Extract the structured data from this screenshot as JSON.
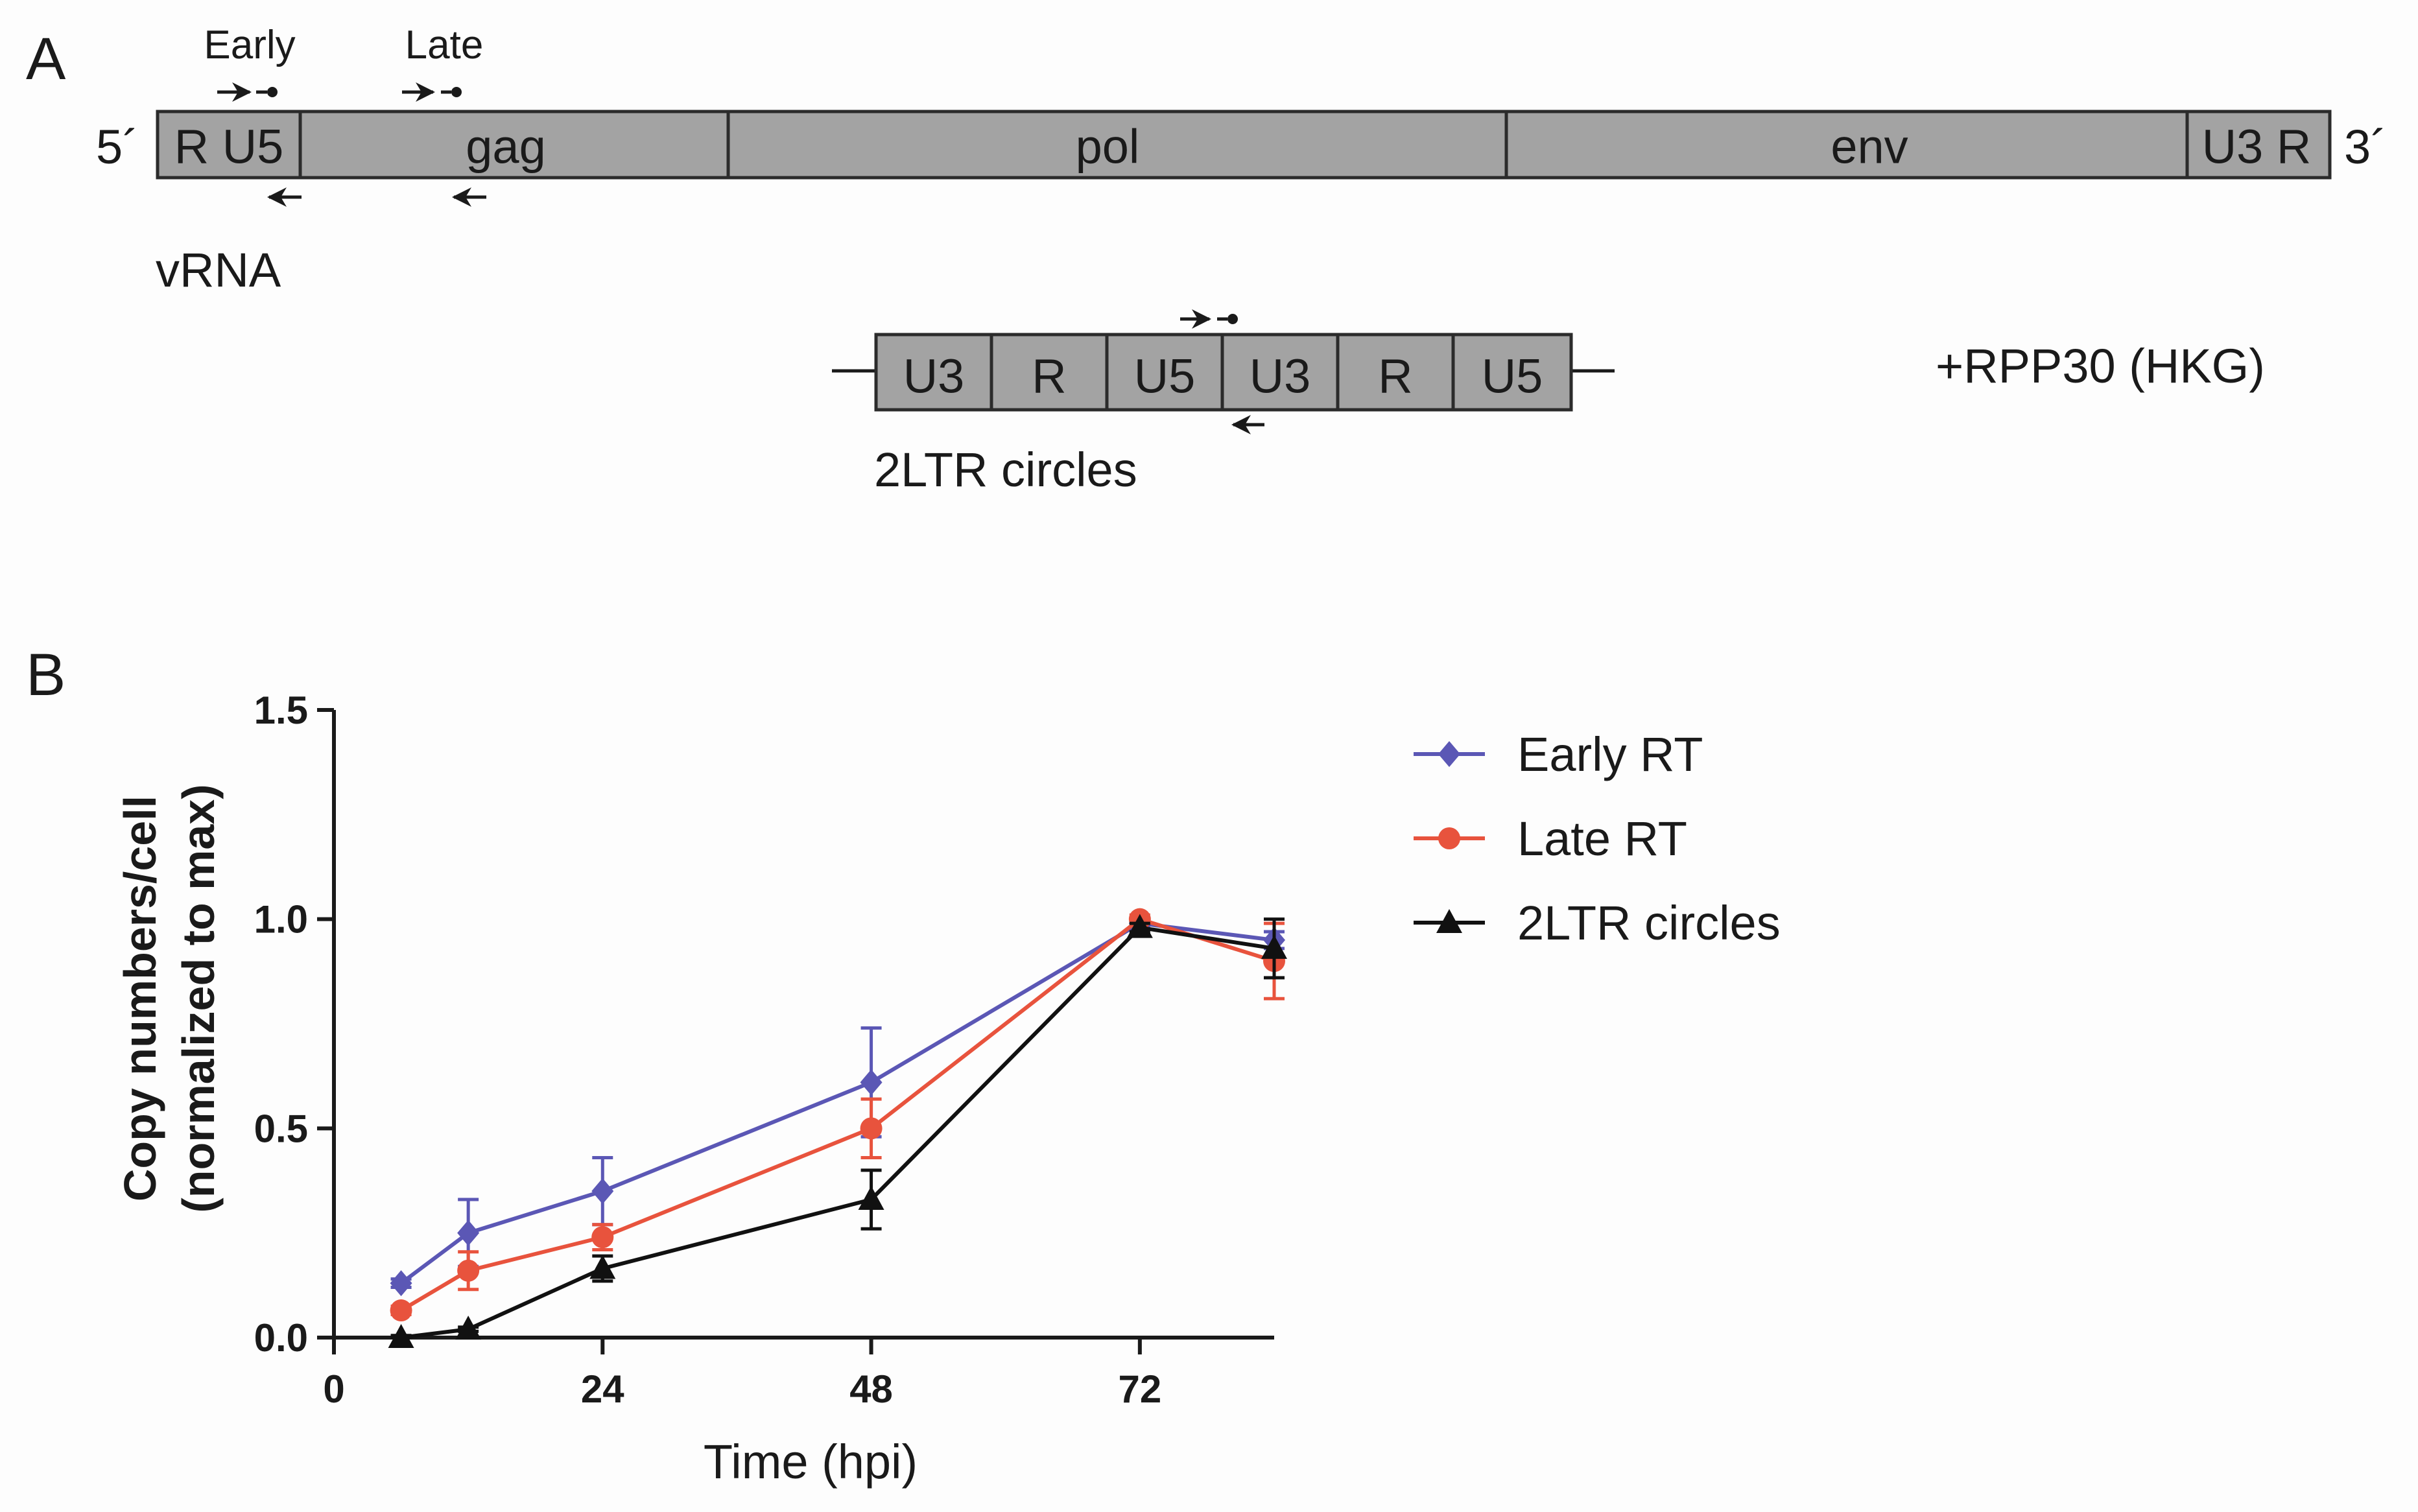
{
  "panel_a": {
    "letter": "A",
    "genome": {
      "five_prime": "5´",
      "three_prime": "3´",
      "segments": [
        "R U5",
        "gag",
        "pol",
        "env",
        "U3 R"
      ]
    },
    "primer_labels": {
      "early": "Early",
      "late": "Late"
    },
    "vrna_label": "vRNA",
    "circle": {
      "segments": [
        "U3",
        "R",
        "U5",
        "U3",
        "R",
        "U5"
      ],
      "label": "2LTR circles"
    },
    "hkg_label": "+RPP30 (HKG)",
    "colors": {
      "segment_fill": "#a3a3a3",
      "segment_stroke": "#2b2b2b"
    }
  },
  "chart_data": {
    "panel_letter": "B",
    "type": "line",
    "title": "",
    "xlabel": "Time (hpi)",
    "ylabel": "Copy numbers/cell",
    "ylabel2": "(normalized to max)",
    "xlim": [
      0,
      84
    ],
    "ylim": [
      0,
      1.5
    ],
    "xticks": [
      0,
      24,
      48,
      72
    ],
    "yticks": [
      0,
      0.5,
      1,
      1.5
    ],
    "ytick_labels": [
      "0.0",
      "0.5",
      "1.0",
      "1.5"
    ],
    "legend_position": "right",
    "series": [
      {
        "name": "Early RT",
        "color": "#5b57b5",
        "marker": "diamond",
        "x": [
          6,
          12,
          24,
          48,
          72,
          84
        ],
        "y": [
          0.13,
          0.25,
          0.35,
          0.61,
          0.99,
          0.95
        ],
        "err": [
          0.01,
          0.08,
          0.08,
          0.13,
          0.01,
          0.02
        ]
      },
      {
        "name": "Late RT",
        "color": "#e8533d",
        "marker": "circle",
        "x": [
          6,
          12,
          24,
          48,
          72,
          84
        ],
        "y": [
          0.065,
          0.16,
          0.24,
          0.5,
          1.0,
          0.9
        ],
        "err": [
          0.01,
          0.045,
          0.03,
          0.07,
          0.01,
          0.09
        ]
      },
      {
        "name": "2LTR circles",
        "color": "#111111",
        "marker": "triangle",
        "x": [
          6,
          12,
          24,
          48,
          72,
          84
        ],
        "y": [
          0.0,
          0.02,
          0.165,
          0.33,
          0.98,
          0.93
        ],
        "err": [
          0.005,
          0.005,
          0.03,
          0.07,
          0.01,
          0.07
        ]
      }
    ]
  }
}
